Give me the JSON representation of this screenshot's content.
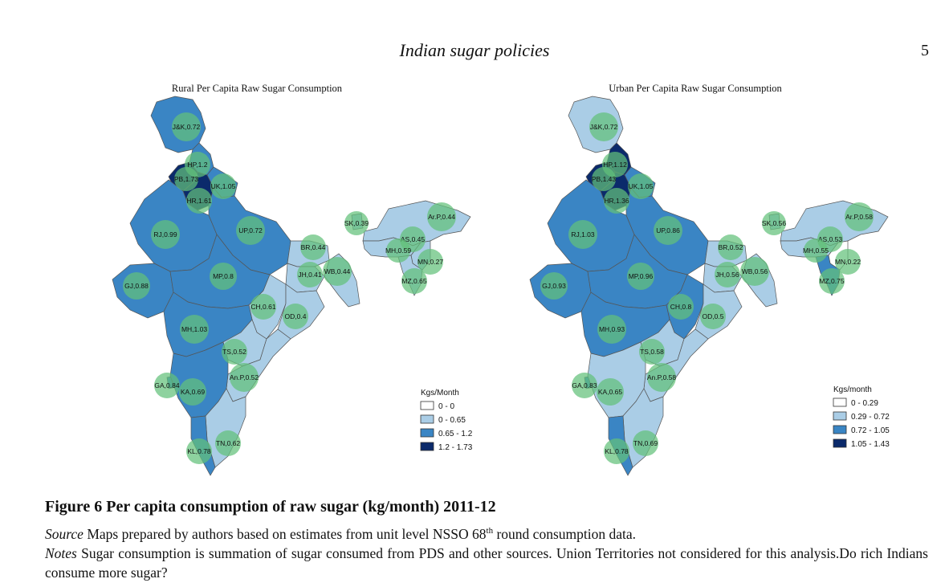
{
  "running_head": "Indian sugar policies",
  "page_number": "5",
  "colors": {
    "class_0": "#ffffff",
    "class_1": "#aacde6",
    "class_2": "#3a85c4",
    "class_3": "#0b2a6b",
    "bubble": "#63c07a",
    "border": "#555555"
  },
  "maps": [
    {
      "title": "Rural Per Capita Raw Sugar Consumption",
      "legend_title": "Kgs/Month",
      "legend": [
        "0 - 0",
        "0 - 0.65",
        "0.65 - 1.2",
        "1.2 - 1.73"
      ],
      "states": [
        {
          "label": "J&K,0.72",
          "value": 0.72,
          "cls": 2
        },
        {
          "label": "HP,1.2",
          "value": 1.2,
          "cls": 2
        },
        {
          "label": "PB,1.73",
          "value": 1.73,
          "cls": 3
        },
        {
          "label": "UK,1.05",
          "value": 1.05,
          "cls": 2
        },
        {
          "label": "HR,1.61",
          "value": 1.61,
          "cls": 3
        },
        {
          "label": "RJ,0.99",
          "value": 0.99,
          "cls": 2
        },
        {
          "label": "UP,0.72",
          "value": 0.72,
          "cls": 2
        },
        {
          "label": "GJ,0.88",
          "value": 0.88,
          "cls": 2
        },
        {
          "label": "MP,0.8",
          "value": 0.8,
          "cls": 2
        },
        {
          "label": "BR,0.44",
          "value": 0.44,
          "cls": 1
        },
        {
          "label": "JH,0.41",
          "value": 0.41,
          "cls": 1
        },
        {
          "label": "WB,0.44",
          "value": 0.44,
          "cls": 1
        },
        {
          "label": "CH,0.61",
          "value": 0.61,
          "cls": 1
        },
        {
          "label": "OD,0.4",
          "value": 0.4,
          "cls": 1
        },
        {
          "label": "MH,1.03",
          "value": 1.03,
          "cls": 2
        },
        {
          "label": "TS,0.52",
          "value": 0.52,
          "cls": 1
        },
        {
          "label": "An.P,0.52",
          "value": 0.52,
          "cls": 1
        },
        {
          "label": "GA,0.84",
          "value": 0.84,
          "cls": 2
        },
        {
          "label": "KA,0.69",
          "value": 0.69,
          "cls": 2
        },
        {
          "label": "TN,0.62",
          "value": 0.62,
          "cls": 1
        },
        {
          "label": "KL,0.78",
          "value": 0.78,
          "cls": 2
        },
        {
          "label": "SK,0.39",
          "value": 0.39,
          "cls": 1
        },
        {
          "label": "Ar.P,0.44",
          "value": 0.44,
          "cls": 1
        },
        {
          "label": "AS,0.45",
          "value": 0.45,
          "cls": 1
        },
        {
          "label": "MH,0.59",
          "value": 0.59,
          "cls": 1
        },
        {
          "label": "MN,0.27",
          "value": 0.27,
          "cls": 1
        },
        {
          "label": "MZ,0.65",
          "value": 0.65,
          "cls": 1
        }
      ]
    },
    {
      "title": "Urban Per Capita Raw Sugar Consumption",
      "legend_title": "Kgs/month",
      "legend": [
        "0 - 0.29",
        "0.29 - 0.72",
        "0.72 - 1.05",
        "1.05 - 1.43"
      ],
      "states": [
        {
          "label": "J&K,0.72",
          "value": 0.72,
          "cls": 1
        },
        {
          "label": "HP,1.12",
          "value": 1.12,
          "cls": 3
        },
        {
          "label": "PB,1.43",
          "value": 1.43,
          "cls": 3
        },
        {
          "label": "UK,1.05",
          "value": 1.05,
          "cls": 2
        },
        {
          "label": "HR,1.36",
          "value": 1.36,
          "cls": 3
        },
        {
          "label": "RJ,1.03",
          "value": 1.03,
          "cls": 2
        },
        {
          "label": "UP,0.86",
          "value": 0.86,
          "cls": 2
        },
        {
          "label": "GJ,0.93",
          "value": 0.93,
          "cls": 2
        },
        {
          "label": "MP,0.96",
          "value": 0.96,
          "cls": 2
        },
        {
          "label": "BR,0.52",
          "value": 0.52,
          "cls": 1
        },
        {
          "label": "JH,0.56",
          "value": 0.56,
          "cls": 1
        },
        {
          "label": "WB,0.56",
          "value": 0.56,
          "cls": 1
        },
        {
          "label": "CH,0.8",
          "value": 0.8,
          "cls": 2
        },
        {
          "label": "OD,0.5",
          "value": 0.5,
          "cls": 1
        },
        {
          "label": "MH,0.93",
          "value": 0.93,
          "cls": 2
        },
        {
          "label": "TS,0.58",
          "value": 0.58,
          "cls": 1
        },
        {
          "label": "An.P,0.58",
          "value": 0.58,
          "cls": 1
        },
        {
          "label": "GA,0.83",
          "value": 0.83,
          "cls": 2
        },
        {
          "label": "KA,0.65",
          "value": 0.65,
          "cls": 1
        },
        {
          "label": "TN,0.69",
          "value": 0.69,
          "cls": 1
        },
        {
          "label": "KL,0.78",
          "value": 0.78,
          "cls": 2
        },
        {
          "label": "SK,0.56",
          "value": 0.56,
          "cls": 1
        },
        {
          "label": "Ar.P,0.58",
          "value": 0.58,
          "cls": 1
        },
        {
          "label": "AS,0.53",
          "value": 0.53,
          "cls": 1
        },
        {
          "label": "MH,0.55",
          "value": 0.55,
          "cls": 1
        },
        {
          "label": "MN,0.22",
          "value": 0.22,
          "cls": 0
        },
        {
          "label": "MZ,0.75",
          "value": 0.75,
          "cls": 2
        }
      ]
    }
  ],
  "caption": {
    "title": "Figure 6 Per capita consumption of raw sugar (kg/month) 2011-12",
    "source_label": "Source",
    "source_before_sup": " Maps prepared by authors based on estimates from unit level NSSO 68",
    "source_sup": "th",
    "source_after_sup": " round consumption data.",
    "notes_label": "Notes",
    "notes_text": " Sugar consumption is summation of sugar consumed from PDS and other sources. Union Territories not considered for this analysis.Do rich Indians consume more sugar?"
  }
}
